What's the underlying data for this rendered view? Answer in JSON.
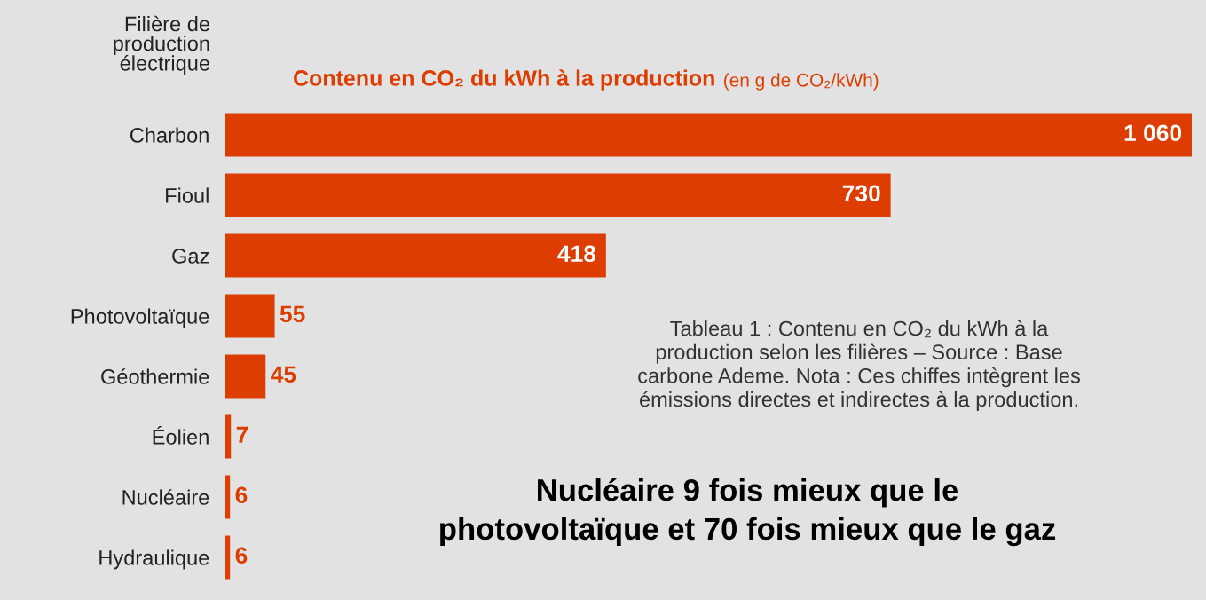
{
  "chart_data": {
    "type": "bar",
    "orientation": "horizontal",
    "title": "Contenu en CO₂ du kWh à la production",
    "subtitle": "(en g de CO₂/kWh)",
    "ylabel": "Filière de\nproduction\nélectrique",
    "categories": [
      "Charbon",
      "Fioul",
      "Gaz",
      "Photovoltaïque",
      "Géothermie",
      "Éolien",
      "Nucléaire",
      "Hydraulique"
    ],
    "values": [
      1060,
      730,
      418,
      55,
      45,
      7,
      6,
      6
    ],
    "value_labels": [
      "1 060",
      "730",
      "418",
      "55",
      "45",
      "7",
      "6",
      "6"
    ],
    "color": "#dd3d00",
    "grid": false,
    "legend": false,
    "annotations": [
      "Tableau 1 : Contenu en CO₂ du kWh à la\nproduction selon les filières – Source : Base\ncarbone Ademe. Nota : Ces chiffes intègrent les\némissions directes et indirectes à la production.",
      "Nucléaire 9 fois mieux que le\nphotovoltaïque et 70 fois mieux que le gaz"
    ]
  }
}
